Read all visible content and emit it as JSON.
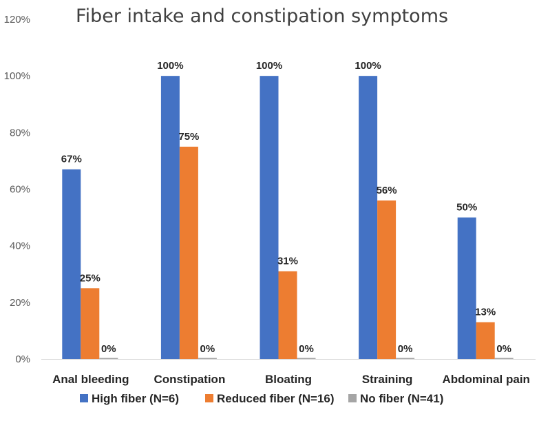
{
  "chart_data": {
    "type": "bar",
    "title": "Fiber intake and constipation symptoms",
    "xlabel": "",
    "ylabel": "",
    "ylim": [
      0,
      120
    ],
    "yticks": [
      0,
      20,
      40,
      60,
      80,
      100,
      120
    ],
    "ytick_format": "percent",
    "grid": false,
    "legend": "bottom",
    "categories": [
      "Anal bleeding",
      "Constipation",
      "Bloating",
      "Straining",
      "Abdominal pain"
    ],
    "series": [
      {
        "name": "High fiber (N=6)",
        "color": "#4472C4",
        "values": [
          67,
          100,
          100,
          100,
          50
        ]
      },
      {
        "name": "Reduced fiber (N=16)",
        "color": "#ED7D31",
        "values": [
          25,
          75,
          31,
          56,
          13
        ]
      },
      {
        "name": "No fiber (N=41)",
        "color": "#A5A5A5",
        "values": [
          0,
          0,
          0,
          0,
          0
        ]
      }
    ]
  }
}
